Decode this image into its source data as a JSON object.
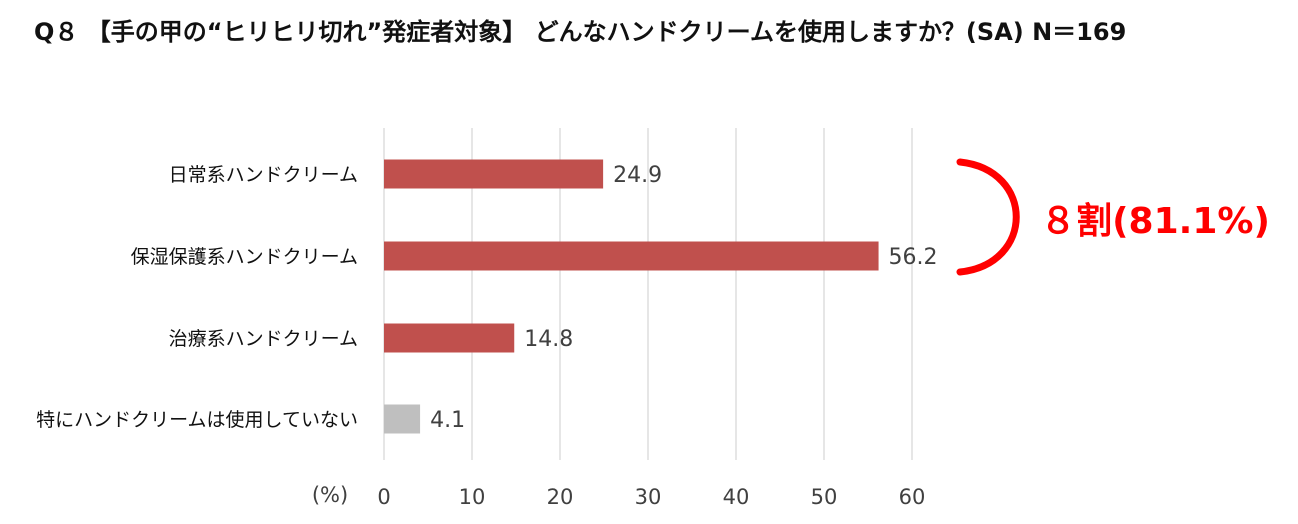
{
  "title": "Q８ 【手の甲の“ヒリヒリ切れ”発症者対象】 どんなハンドクリームを使用しますか？(SA) N＝169",
  "chart_data": {
    "type": "bar",
    "orientation": "horizontal",
    "categories": [
      "日常系ハンドクリーム",
      "保湿保護系ハンドクリーム",
      "治療系ハンドクリーム",
      "特にハンドクリームは使用していない"
    ],
    "values": [
      24.9,
      56.2,
      14.8,
      4.1
    ],
    "data_labels": [
      "24.9",
      "56.2",
      "14.8",
      "4.1"
    ],
    "bar_colors": [
      "#c0504d",
      "#c0504d",
      "#c0504d",
      "#bfbfbf"
    ],
    "xlim": [
      0,
      60
    ],
    "x_ticks": [
      "0",
      "10",
      "20",
      "30",
      "40",
      "50",
      "60"
    ],
    "xlabel": "(%)",
    "grid": true,
    "annotation": {
      "text": "８割(81.1%)",
      "color": "#ff0000",
      "brackets_categories": [
        0,
        1
      ]
    }
  }
}
